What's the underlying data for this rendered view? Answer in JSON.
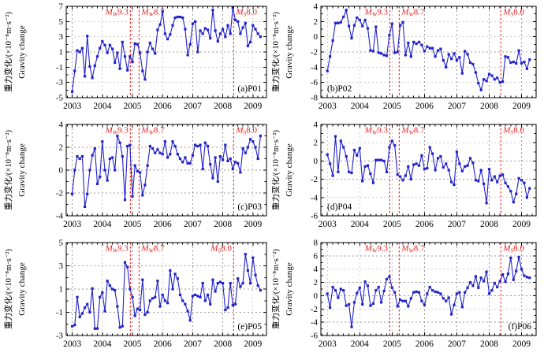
{
  "figure": {
    "ylabel_cn": "重力变化/(×10⁻⁸m·s⁻²)",
    "ylabel_en": "Gravity change",
    "colors": {
      "series": "#2121cd",
      "event": "#e82020",
      "grid": "#9b9b9b",
      "axis": "#000000",
      "background": "#ffffff"
    }
  },
  "chart_data": [
    {
      "type": "line",
      "panel_label": "(a)P01",
      "panel_label_side": "right",
      "ylim": [
        -5,
        7
      ],
      "yticks": [
        7,
        5,
        3,
        1,
        -1,
        -3,
        -5
      ],
      "xlim": [
        2002.8,
        2009.45
      ],
      "xticks": [
        2003,
        2004,
        2005,
        2006,
        2007,
        2008,
        2009
      ],
      "x_start": 2003.0,
      "x_step": 0.0833333,
      "values": [
        -4.2,
        -1.5,
        1.2,
        1.0,
        1.5,
        -2.2,
        3.1,
        -0.9,
        -2.4,
        -0.8,
        0.4,
        1.5,
        2.4,
        1.9,
        0.9,
        1.9,
        1.4,
        -0.4,
        0.9,
        -1.2,
        2.3,
        0.4,
        -1.4,
        0.4,
        -0.3,
        2.1,
        2.0,
        0.9,
        -1.5,
        -2.6,
        1.0,
        2.2,
        1.4,
        0.8,
        3.9,
        4.6,
        6.3,
        3.4,
        2.7,
        3.3,
        4.5,
        5.5,
        5.6,
        5.6,
        5.5,
        4.0,
        0.6,
        2.0,
        4.7,
        5.0,
        1.0,
        3.8,
        3.4,
        4.1,
        3.9,
        2.8,
        6.5,
        3.8,
        2.4,
        3.4,
        4.0,
        3.0,
        4.5,
        3.4,
        6.8,
        5.2,
        5.0,
        3.4,
        4.2,
        4.8,
        1.8,
        2.3,
        4.5,
        4.0,
        3.4,
        3.0
      ],
      "events": [
        {
          "prefix": "M",
          "sub": "W",
          "mag": "9.3",
          "x": 2004.93,
          "anchor": "end"
        },
        {
          "prefix": "M",
          "sub": "W",
          "mag": "8.7",
          "x": 2005.22,
          "anchor": "start"
        },
        {
          "prefix": "M",
          "sub": "S",
          "mag": "8.0",
          "x": 2008.36,
          "anchor": "start"
        }
      ]
    },
    {
      "type": "line",
      "panel_label": "(b)P02",
      "panel_label_side": "left",
      "ylim": [
        -8,
        4
      ],
      "yticks": [
        4,
        2,
        0,
        -2,
        -4,
        -6,
        -8
      ],
      "xlim": [
        2002.8,
        2009.45
      ],
      "xticks": [
        2003,
        2004,
        2005,
        2006,
        2007,
        2008,
        2009
      ],
      "x_start": 2003.0,
      "x_step": 0.0833333,
      "values": [
        -4.5,
        -2.6,
        -0.5,
        1.8,
        1.8,
        1.9,
        2.6,
        3.5,
        1.4,
        -0.2,
        1.5,
        2.5,
        2.2,
        1.4,
        2.2,
        1.1,
        -1.8,
        -1.9,
        1.3,
        -2.1,
        -2.2,
        -2.4,
        -2.5,
        0.2,
        1.7,
        -2.1,
        -2.0,
        1.5,
        1.9,
        -2.4,
        -0.8,
        -2.6,
        -0.7,
        -0.9,
        -0.7,
        -1.1,
        -1.9,
        -1.3,
        -1.5,
        -1.5,
        -2.6,
        -1.8,
        -1.6,
        -3.1,
        -4.0,
        -2.3,
        -2.9,
        -2.2,
        -3.1,
        -2.7,
        -4.8,
        -1.9,
        -2.3,
        -3.4,
        -3.6,
        -4.7,
        -6.1,
        -7.0,
        -5.6,
        -5.8,
        -4.9,
        -5.1,
        -5.6,
        -5.4,
        -6.0,
        -5.9,
        -2.6,
        -2.7,
        -3.4,
        -3.3,
        -3.5,
        -1.8,
        -3.5,
        -3.3,
        -4.2,
        -3.0
      ],
      "events": [
        {
          "prefix": "M",
          "sub": "W",
          "mag": "9.3",
          "x": 2004.93,
          "anchor": "end"
        },
        {
          "prefix": "M",
          "sub": "W",
          "mag": "8.7",
          "x": 2005.22,
          "anchor": "start"
        },
        {
          "prefix": "M",
          "sub": "S",
          "mag": "8.0",
          "x": 2008.36,
          "anchor": "start"
        }
      ]
    },
    {
      "type": "line",
      "panel_label": "(c)P03",
      "panel_label_side": "right",
      "ylim": [
        -4,
        4
      ],
      "yticks": [
        4,
        2,
        0,
        -2,
        -4
      ],
      "xlim": [
        2002.8,
        2009.45
      ],
      "xticks": [
        2003,
        2004,
        2005,
        2006,
        2007,
        2008,
        2009
      ],
      "x_start": 2003.0,
      "x_step": 0.0833333,
      "values": [
        -2.1,
        0.0,
        1.2,
        1.0,
        1.2,
        -3.2,
        -2.1,
        0.0,
        1.3,
        1.9,
        -1.2,
        -0.6,
        2.5,
        0.0,
        -0.9,
        1.0,
        1.1,
        0.0,
        3.0,
        2.4,
        1.2,
        -2.6,
        2.1,
        2.2,
        -2.3,
        0.4,
        -0.1,
        -0.2,
        -2.2,
        -1.3,
        0.4,
        2.1,
        1.9,
        1.5,
        1.8,
        1.5,
        1.4,
        2.5,
        1.1,
        1.4,
        2.5,
        2.1,
        1.4,
        1.0,
        0.7,
        1.1,
        0.6,
        0.6,
        1.3,
        2.2,
        2.1,
        2.2,
        0.1,
        2.4,
        2.1,
        0.5,
        -0.7,
        1.1,
        -1.0,
        1.2,
        0.9,
        2.2,
        0.8,
        1.0,
        0.1,
        0.7,
        0.6,
        -0.2,
        1.9,
        1.5,
        2.0,
        2.7,
        2.5,
        2.0,
        1.0,
        3.0
      ],
      "events": [
        {
          "prefix": "M",
          "sub": "W",
          "mag": "9.3",
          "x": 2004.93,
          "anchor": "end"
        },
        {
          "prefix": "M",
          "sub": "W",
          "mag": "8.7",
          "x": 2005.22,
          "anchor": "start"
        },
        {
          "prefix": "M",
          "sub": "S",
          "mag": "8.0",
          "x": 2008.36,
          "anchor": "start"
        }
      ]
    },
    {
      "type": "line",
      "panel_label": "(d)P04",
      "panel_label_side": "left",
      "ylim": [
        -6,
        4
      ],
      "yticks": [
        4,
        2,
        0,
        -2,
        -4,
        -6
      ],
      "xlim": [
        2002.8,
        2009.45
      ],
      "xticks": [
        2003,
        2004,
        2005,
        2006,
        2007,
        2008,
        2009
      ],
      "x_start": 2003.0,
      "x_step": 0.0833333,
      "values": [
        0.7,
        -0.3,
        -1.6,
        2.7,
        -1.2,
        2.2,
        1.5,
        0.5,
        -1.2,
        -1.3,
        1.2,
        0.6,
        1.4,
        -2.2,
        -0.6,
        -0.5,
        -1.4,
        -2.4,
        0.1,
        0.1,
        0.1,
        0.0,
        -1.2,
        1.5,
        2.2,
        1.7,
        -1.5,
        -1.7,
        -2.1,
        -1.6,
        -0.6,
        -2.0,
        -0.4,
        -0.3,
        -0.5,
        0.6,
        -0.9,
        -0.8,
        1.5,
        0.8,
        -1.0,
        0.3,
        0.5,
        -0.7,
        -0.3,
        -1.0,
        -2.3,
        -2.6,
        1.0,
        -0.3,
        -1.1,
        -0.6,
        -0.5,
        0.3,
        -0.2,
        -2.1,
        -2.2,
        -1.0,
        -2.5,
        -4.6,
        -0.9,
        -2.1,
        -1.7,
        -2.3,
        -1.6,
        -1.5,
        -2.4,
        -2.8,
        -3.3,
        -4.5,
        -3.6,
        -1.9,
        -2.1,
        -2.4,
        -4.0,
        -3.0
      ],
      "events": [
        {
          "prefix": "M",
          "sub": "W",
          "mag": "9.3",
          "x": 2004.93,
          "anchor": "end"
        },
        {
          "prefix": "M",
          "sub": "W",
          "mag": "8.7",
          "x": 2005.22,
          "anchor": "start"
        },
        {
          "prefix": "M",
          "sub": "S",
          "mag": "8.0",
          "x": 2008.36,
          "anchor": "start"
        }
      ]
    },
    {
      "type": "line",
      "panel_label": "(e)P05",
      "panel_label_side": "right",
      "ylim": [
        -3,
        5
      ],
      "yticks": [
        5,
        3,
        1,
        -1,
        -3
      ],
      "xlim": [
        2002.8,
        2009.45
      ],
      "xticks": [
        2003,
        2004,
        2005,
        2006,
        2007,
        2008,
        2009
      ],
      "x_start": 2003.0,
      "x_step": 0.0833333,
      "values": [
        -2.2,
        -2.1,
        0.3,
        -1.4,
        -1.1,
        -0.6,
        -0.3,
        -1.0,
        1.05,
        -2.4,
        -2.4,
        0.3,
        0.7,
        -0.9,
        1.7,
        1.3,
        1.0,
        0.9,
        -0.5,
        -2.3,
        -2.2,
        3.3,
        2.9,
        1.0,
        0.3,
        -1.3,
        -0.7,
        -0.8,
        1.8,
        -1.2,
        -1.0,
        0.0,
        0.2,
        0.3,
        1.7,
        -0.5,
        0.5,
        0.0,
        -0.2,
        2.6,
        1.0,
        2.3,
        1.9,
        0.5,
        0.0,
        -0.3,
        -0.9,
        -1.7,
        0.4,
        0.5,
        0.4,
        0.3,
        1.5,
        0.0,
        0.5,
        -0.3,
        1.8,
        0.8,
        1.5,
        1.6,
        1.5,
        -0.8,
        -0.6,
        1.5,
        -0.4,
        -0.3,
        1.9,
        1.2,
        1.5,
        4.0,
        2.6,
        1.5,
        3.7,
        2.2,
        1.3,
        0.9
      ],
      "events": [
        {
          "prefix": "M",
          "sub": "W",
          "mag": "9.3",
          "x": 2004.93,
          "anchor": "end"
        },
        {
          "prefix": "M",
          "sub": "W",
          "mag": "8.7",
          "x": 2005.22,
          "anchor": "start"
        },
        {
          "prefix": "M",
          "sub": "S",
          "mag": "8.0",
          "x": 2008.36,
          "anchor": "end"
        }
      ]
    },
    {
      "type": "line",
      "panel_label": "(f)P06",
      "panel_label_side": "right",
      "ylim": [
        -6,
        8
      ],
      "yticks": [
        8,
        6,
        4,
        2,
        0,
        -2,
        -4,
        -6
      ],
      "xlim": [
        2002.8,
        2009.45
      ],
      "xticks": [
        2003,
        2004,
        2005,
        2006,
        2007,
        2008,
        2009
      ],
      "x_start": 2003.0,
      "x_step": 0.0833333,
      "values": [
        0.3,
        -1.8,
        1.3,
        0.8,
        -0.3,
        1.0,
        0.8,
        -1.5,
        -1.3,
        -4.7,
        -1.0,
        0.4,
        1.2,
        -1.3,
        2.1,
        1.5,
        -1.5,
        -1.2,
        0.8,
        1.3,
        -1.0,
        0.7,
        2.5,
        2.9,
        1.2,
        0.5,
        -1.6,
        -0.6,
        -0.8,
        -0.8,
        -1.6,
        -0.4,
        0.5,
        0.6,
        0.5,
        -0.8,
        -1.4,
        0.3,
        1.3,
        0.8,
        0.6,
        0.5,
        0.3,
        -0.4,
        -0.8,
        -0.3,
        -2.8,
        -1.4,
        0.3,
        0.5,
        -1.7,
        0.5,
        1.2,
        2.0,
        1.5,
        2.9,
        1.2,
        2.7,
        2.2,
        3.6,
        0.3,
        0.8,
        1.9,
        1.3,
        2.2,
        3.2,
        2.1,
        3.3,
        5.7,
        2.4,
        3.7,
        5.8,
        4.0,
        3.0,
        2.8,
        2.7
      ],
      "events": [
        {
          "prefix": "M",
          "sub": "W",
          "mag": "9.3",
          "x": 2004.93,
          "anchor": "end"
        },
        {
          "prefix": "M",
          "sub": "W",
          "mag": "8.7",
          "x": 2005.22,
          "anchor": "start"
        },
        {
          "prefix": "M",
          "sub": "S",
          "mag": "8.0",
          "x": 2008.36,
          "anchor": "start"
        }
      ]
    }
  ]
}
